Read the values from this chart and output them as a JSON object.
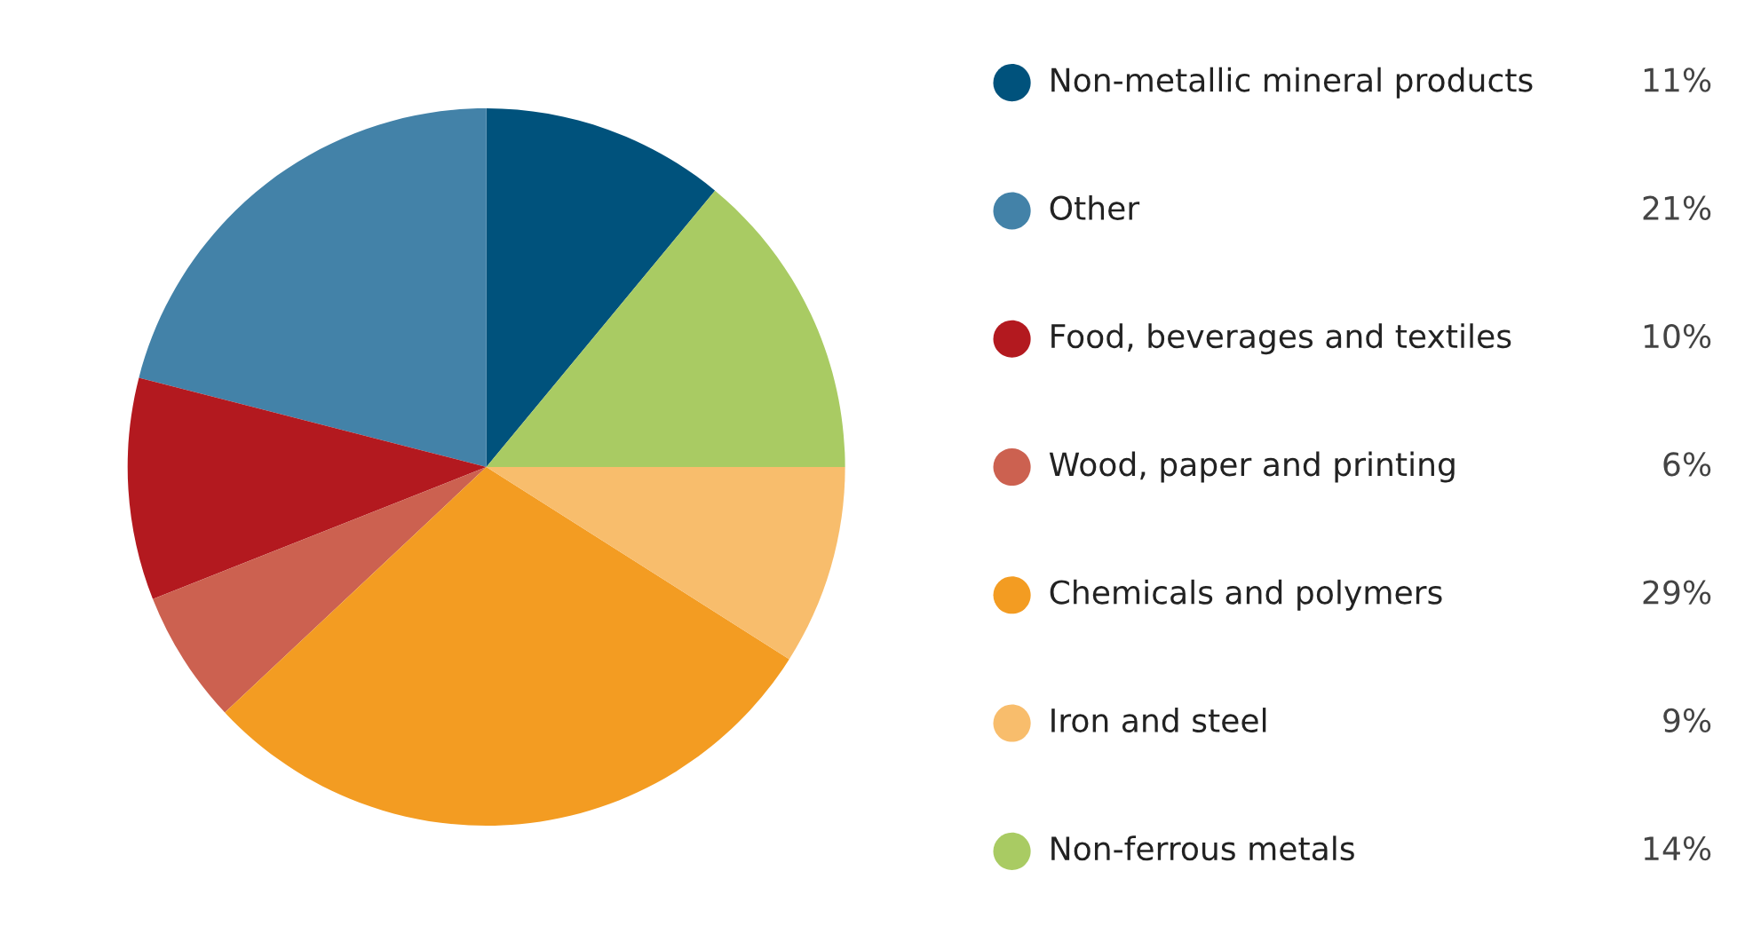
{
  "chart_data": {
    "type": "pie",
    "categories": [
      "Non-metallic mineral products",
      "Other",
      "Food, beverages and textiles",
      "Wood, paper and printing",
      "Chemicals and polymers",
      "Iron and steel",
      "Non-ferrous metals"
    ],
    "values": [
      11,
      21,
      10,
      6,
      29,
      9,
      14
    ],
    "colors": [
      "#00527c",
      "#4382a8",
      "#b3191f",
      "#cc6150",
      "#f39c22",
      "#f8bd6c",
      "#a9cb63"
    ],
    "value_labels": [
      "11%",
      "21%",
      "10%",
      "6%",
      "29%",
      "9%",
      "14%"
    ],
    "legend": "right"
  }
}
